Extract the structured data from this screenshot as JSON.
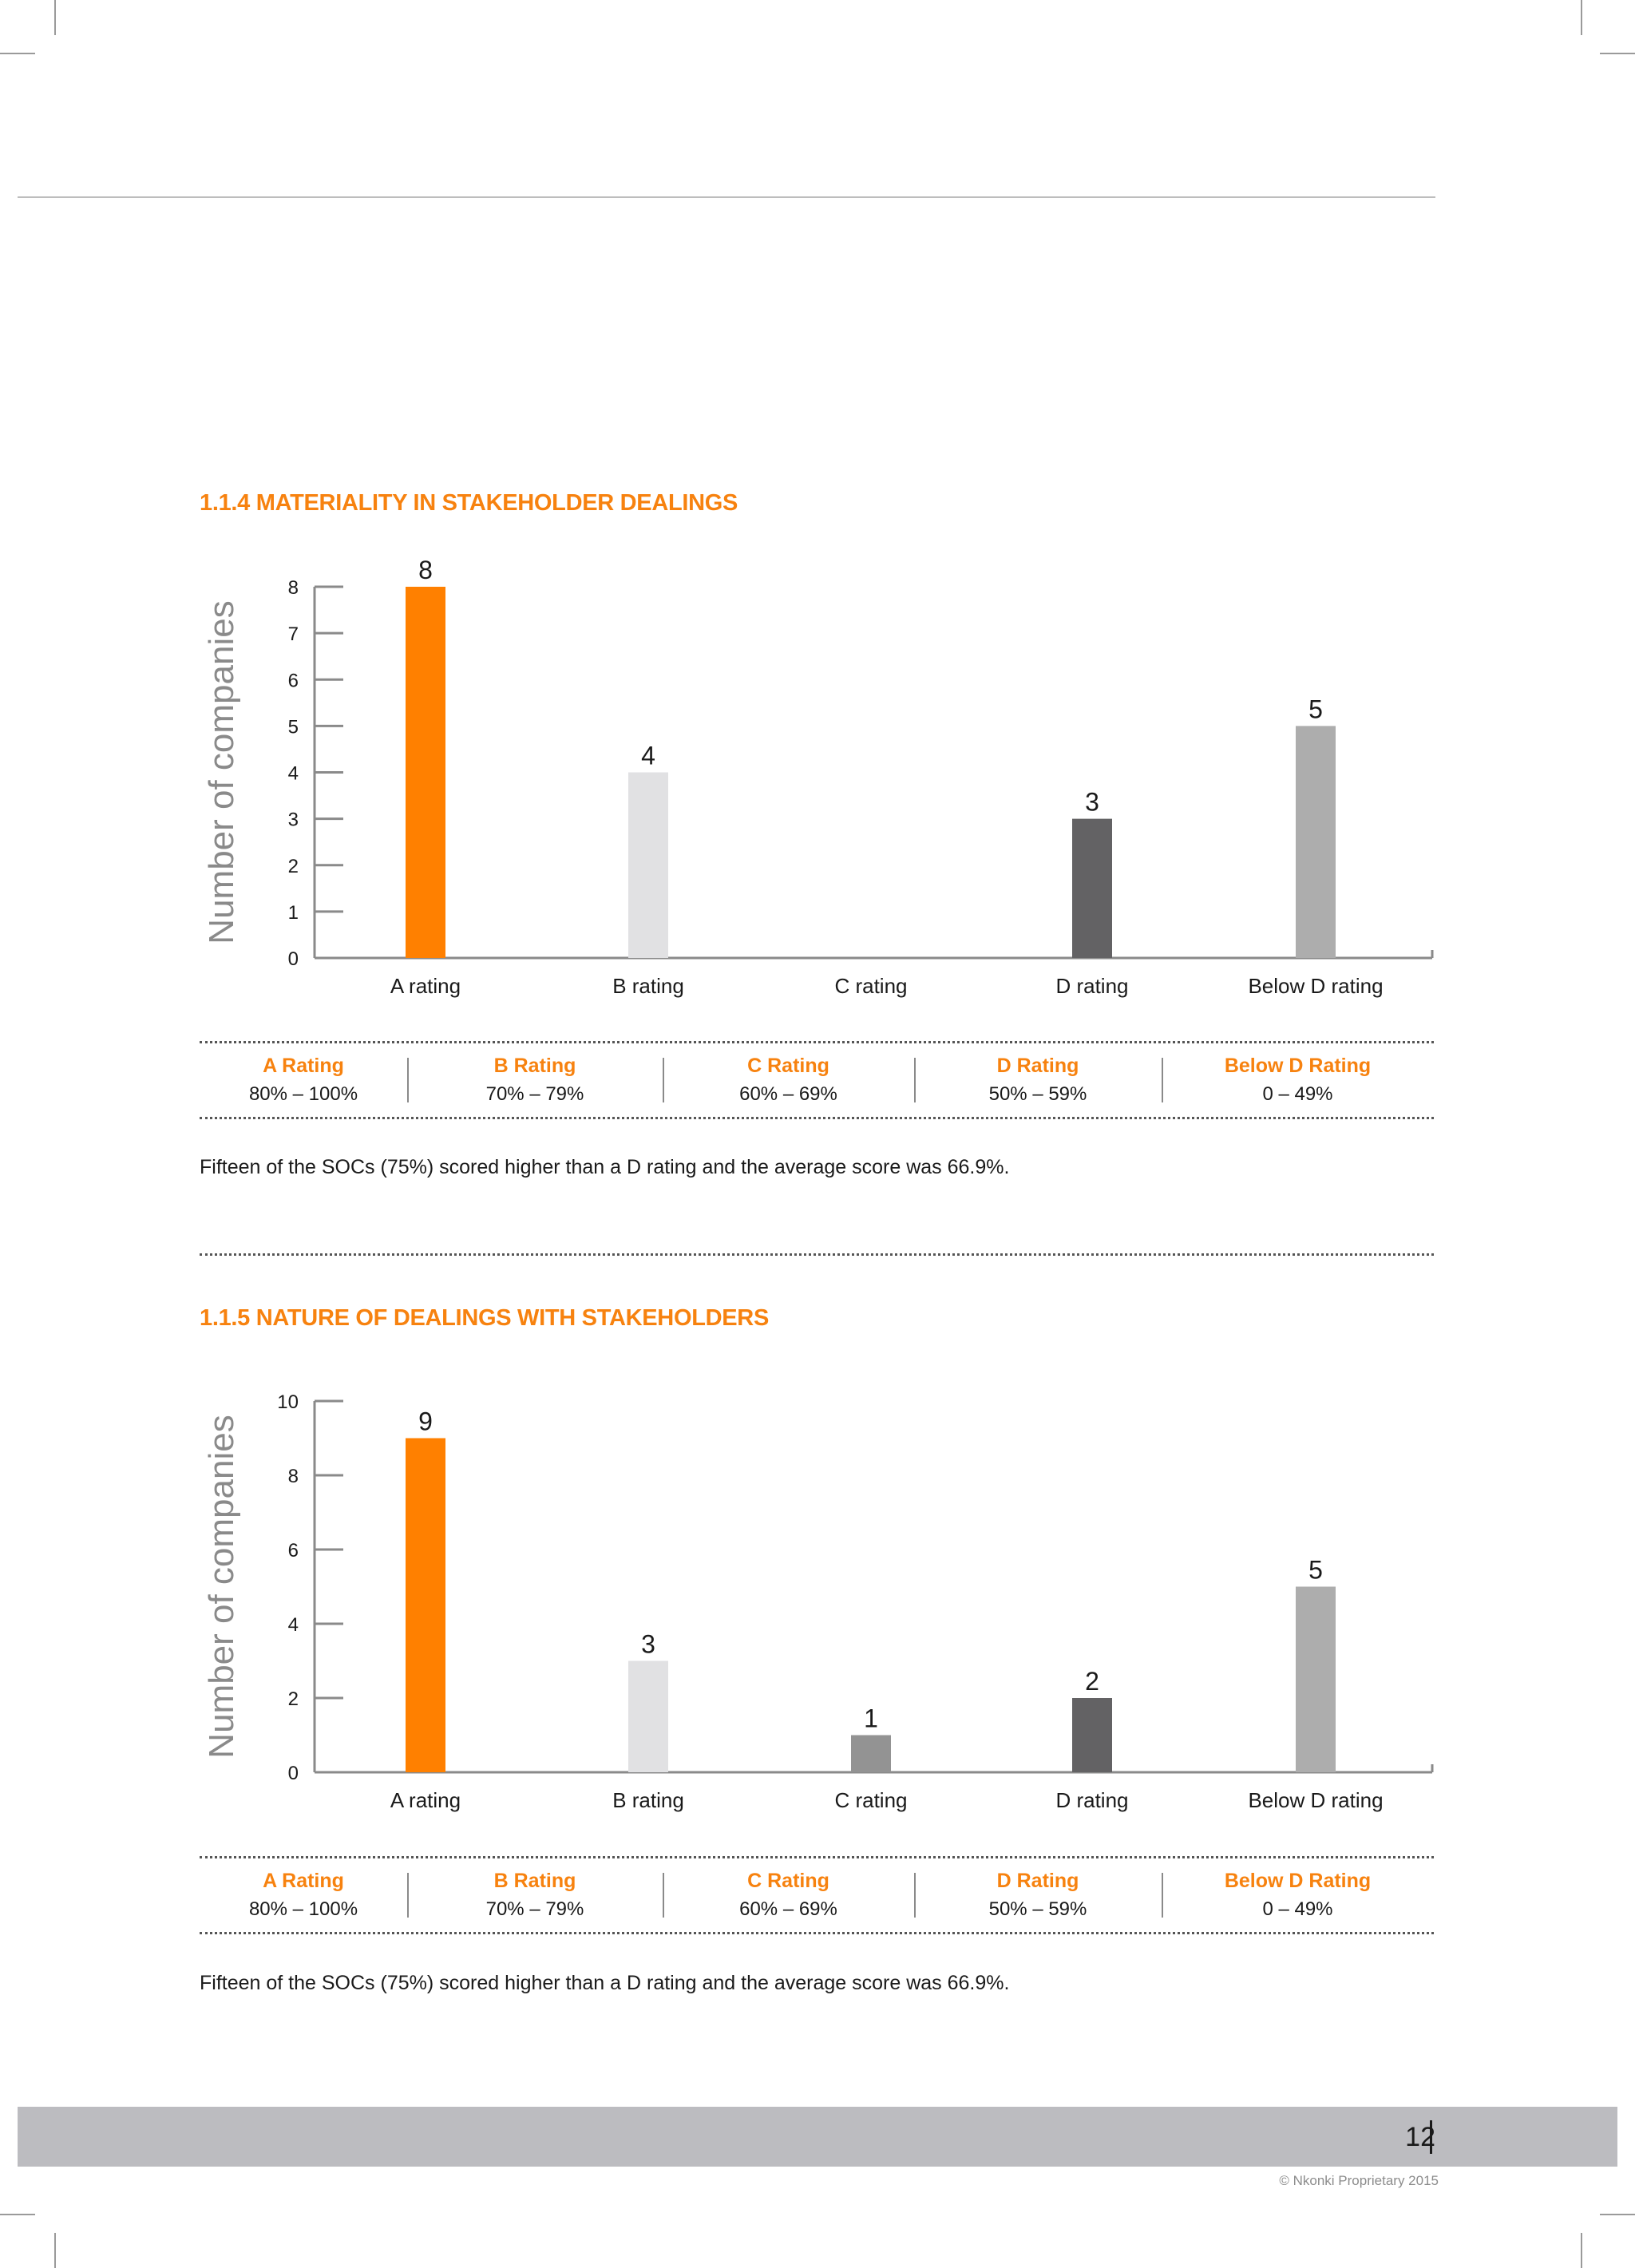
{
  "sections": [
    {
      "title": "1.1.4 MATERIALITY IN STAKEHOLDER DEALINGS",
      "note": "Fifteen of the SOCs (75%) scored higher than a D rating and the average score was 66.9%."
    },
    {
      "title": "1.1.5 NATURE OF DEALINGS WITH STAKEHOLDERS",
      "note": "Fifteen of the SOCs (75%) scored higher than a D rating and the average score was 66.9%."
    }
  ],
  "legend": [
    {
      "name": "A Rating",
      "range": "80% – 100%"
    },
    {
      "name": "B Rating",
      "range": "70% – 79%"
    },
    {
      "name": "C Rating",
      "range": "60% – 69%"
    },
    {
      "name": "D Rating",
      "range": "50% – 59%"
    },
    {
      "name": "Below D Rating",
      "range": "0 – 49%"
    }
  ],
  "colors": {
    "accent": "#f7820f",
    "a": "#ff8000",
    "b": "#e1e1e3",
    "c": "#939393",
    "d": "#636264",
    "below_d": "#adadad",
    "axis": "#8a8a8a",
    "ylabel": "#8a8a8a"
  },
  "chart_data": [
    {
      "type": "bar",
      "categories": [
        "A rating",
        "B rating",
        "C rating",
        "D rating",
        "Below D rating"
      ],
      "values": [
        8,
        4,
        0,
        3,
        5
      ],
      "value_labels": [
        "8",
        "4",
        "",
        "3",
        "5"
      ],
      "ylabel": "Number of companies",
      "ylim": [
        0,
        8
      ],
      "yticks": [
        0,
        1,
        2,
        3,
        4,
        5,
        6,
        7,
        8
      ],
      "grid": false,
      "legend": "none"
    },
    {
      "type": "bar",
      "categories": [
        "A rating",
        "B rating",
        "C rating",
        "D rating",
        "Below D rating"
      ],
      "values": [
        9,
        3,
        1,
        2,
        5
      ],
      "value_labels": [
        "9",
        "3",
        "1",
        "2",
        "5"
      ],
      "ylabel": "Number of companies",
      "ylim": [
        0,
        10
      ],
      "yticks": [
        0,
        2,
        4,
        6,
        8,
        10
      ],
      "grid": false,
      "legend": "none"
    }
  ],
  "footer": {
    "page_number": "12",
    "copyright": "© Nkonki Proprietary 2015"
  }
}
